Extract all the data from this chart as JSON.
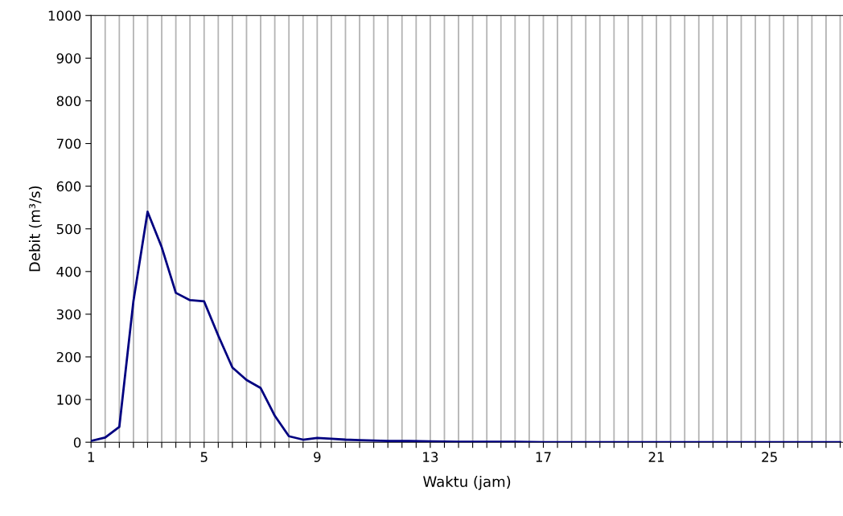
{
  "chart_data": {
    "type": "line",
    "xlabel": "Waktu (jam)",
    "ylabel": "Debit (m³/s)",
    "x": [
      1,
      1.5,
      2,
      2.5,
      3,
      3.5,
      4,
      4.5,
      5,
      5.5,
      6,
      6.5,
      7,
      7.5,
      8,
      8.5,
      9,
      9.5,
      10,
      10.5,
      11,
      11.5,
      12,
      13,
      14,
      15,
      16,
      17,
      18,
      19,
      20,
      21,
      22,
      23,
      24,
      25,
      26,
      27,
      27.5
    ],
    "series": [
      {
        "color": "#000080",
        "values": [
          3,
          11,
          36,
          331,
          540,
          457,
          350,
          333,
          330,
          250,
          175,
          146,
          127,
          62,
          14,
          6,
          10,
          8,
          6,
          5,
          4,
          3,
          3,
          2,
          1,
          1,
          1,
          0,
          0,
          0,
          0,
          0,
          0,
          0,
          0,
          0,
          0,
          0,
          0
        ]
      }
    ],
    "xlim": [
      1,
      27.6
    ],
    "xticks": [
      1,
      {
        "value": 1.5,
        "label": null
      },
      {
        "value": 2,
        "label": null
      },
      {
        "value": 2.5,
        "label": null
      },
      {
        "value": 3,
        "label": null
      },
      {
        "value": 3.5,
        "label": null
      },
      {
        "value": 4,
        "label": null
      },
      {
        "value": 4.5,
        "label": null
      },
      5,
      {
        "value": 5.5,
        "label": null
      },
      {
        "value": 6,
        "label": null
      },
      {
        "value": 6.5,
        "label": null
      },
      {
        "value": 7,
        "label": null
      },
      {
        "value": 7.5,
        "label": null
      },
      {
        "value": 8,
        "label": null
      },
      {
        "value": 8.5,
        "label": null
      },
      9,
      {
        "value": 9.5,
        "label": null
      },
      {
        "value": 10,
        "label": null
      },
      {
        "value": 10.5,
        "label": null
      },
      {
        "value": 11,
        "label": null
      },
      {
        "value": 11.5,
        "label": null
      },
      {
        "value": 12,
        "label": null
      },
      {
        "value": 12.5,
        "label": null
      },
      13,
      {
        "value": 13.5,
        "label": null
      },
      {
        "value": 14,
        "label": null
      },
      {
        "value": 14.5,
        "label": null
      },
      {
        "value": 15,
        "label": null
      },
      {
        "value": 15.5,
        "label": null
      },
      {
        "value": 16,
        "label": null
      },
      {
        "value": 16.5,
        "label": null
      },
      17,
      {
        "value": 17.5,
        "label": null
      },
      {
        "value": 18,
        "label": null
      },
      {
        "value": 18.5,
        "label": null
      },
      {
        "value": 19,
        "label": null
      },
      {
        "value": 19.5,
        "label": null
      },
      {
        "value": 20,
        "label": null
      },
      {
        "value": 20.5,
        "label": null
      },
      21,
      {
        "value": 21.5,
        "label": null
      },
      {
        "value": 22,
        "label": null
      },
      {
        "value": 22.5,
        "label": null
      },
      {
        "value": 23,
        "label": null
      },
      {
        "value": 23.5,
        "label": null
      },
      {
        "value": 24,
        "label": null
      },
      {
        "value": 24.5,
        "label": null
      },
      25,
      {
        "value": 25.5,
        "label": null
      },
      {
        "value": 26,
        "label": null
      },
      {
        "value": 26.5,
        "label": null
      },
      {
        "value": 27,
        "label": null
      },
      {
        "value": 27.5,
        "label": null
      }
    ],
    "ylim": [
      0,
      1000
    ],
    "yticks": [
      0,
      100,
      200,
      300,
      400,
      500,
      600,
      700,
      800,
      900,
      1000
    ],
    "grid": "x",
    "legend": false,
    "marker": "none",
    "line_style": "solid"
  }
}
